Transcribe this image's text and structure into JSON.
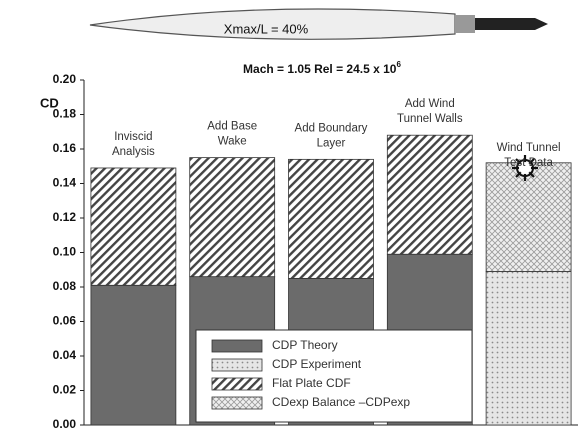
{
  "chart_data": {
    "type": "stacked-bar",
    "annotation": "Xmax/L = 40%",
    "title": "Mach = 1.05    Rel = 24.5 x 10",
    "title_exponent": "6",
    "y_label": "CD",
    "categories": [
      [
        "Inviscid",
        "Analysis"
      ],
      [
        "Add Base",
        "Wake"
      ],
      [
        "Add Boundary",
        "Layer"
      ],
      [
        "Add Wind",
        "Tunnel Walls"
      ],
      [
        "Wind Tunnel",
        "Test Data"
      ]
    ],
    "series": [
      {
        "name": "CDP Theory",
        "color": "#6b6b6b",
        "pattern": "solid",
        "values": [
          0.081,
          0.086,
          0.085,
          0.099,
          null
        ]
      },
      {
        "name": "CDP  Experiment",
        "color": "#9a9a9a",
        "pattern": "dots",
        "values": [
          null,
          null,
          null,
          null,
          0.089
        ]
      },
      {
        "name": "Flat Plate CDF",
        "color": "#444444",
        "pattern": "hatch",
        "values": [
          0.068,
          0.069,
          0.069,
          0.069,
          null
        ]
      },
      {
        "name": "CDexp Balance –CDPexp",
        "color": "#8a8a8a",
        "pattern": "cross",
        "values": [
          null,
          null,
          null,
          null,
          0.063
        ]
      }
    ],
    "ylim": [
      0,
      0.2
    ],
    "yticks": [
      {
        "value": 0,
        "label": "0.00"
      },
      {
        "value": 0.02,
        "label": "0.02"
      },
      {
        "value": 0.04,
        "label": "0.04"
      },
      {
        "value": 0.06,
        "label": "0.06"
      },
      {
        "value": 0.08,
        "label": "0.08"
      },
      {
        "value": 0.1,
        "label": "0.10"
      },
      {
        "value": 0.12,
        "label": "0.12"
      },
      {
        "value": 0.14,
        "label": "0.14"
      },
      {
        "value": 0.16,
        "label": "0.16"
      },
      {
        "value": 0.18,
        "label": "0.18"
      },
      {
        "value": 0.2,
        "label": "0.20"
      }
    ]
  }
}
